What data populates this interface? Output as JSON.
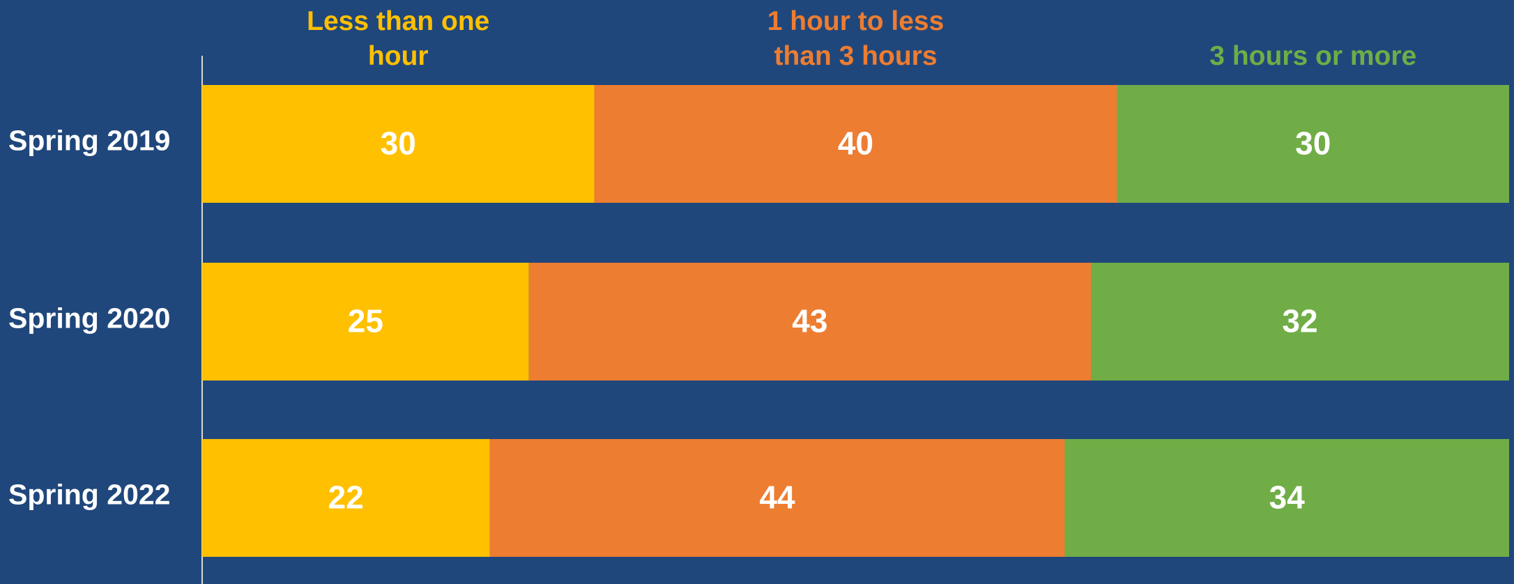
{
  "chart_data": {
    "type": "stacked_bar_horizontal",
    "categories": [
      "Spring 2019",
      "Spring 2020",
      "Spring 2022"
    ],
    "series": [
      {
        "name": "Less than one hour",
        "color": "#ffc000",
        "values": [
          30,
          25,
          22
        ]
      },
      {
        "name": "1 hour to less than 3 hours",
        "color": "#ed7d31",
        "values": [
          40,
          43,
          44
        ]
      },
      {
        "name": "3 hours or more",
        "color": "#70ad47",
        "values": [
          30,
          32,
          34
        ]
      }
    ],
    "xlim": [
      0,
      100
    ]
  }
}
